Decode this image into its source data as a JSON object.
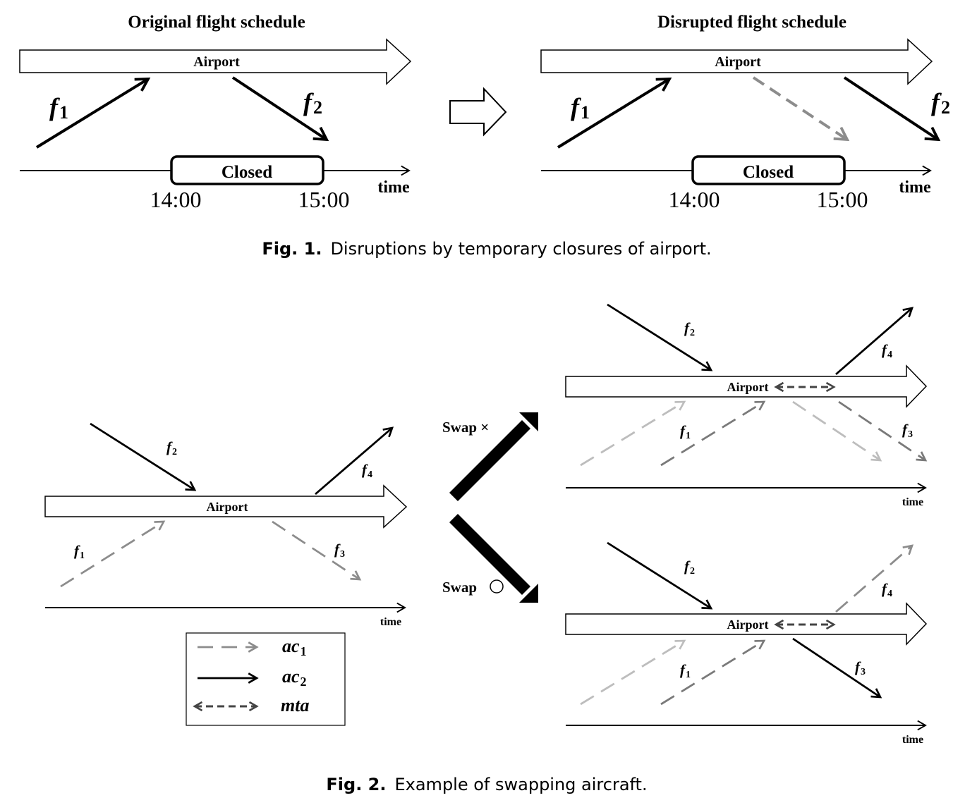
{
  "fig1": {
    "left": {
      "title": "Original flight schedule",
      "airport": "Airport",
      "f1_letter": "f",
      "f1_sub": "1",
      "f2_letter": "f",
      "f2_sub": "2",
      "closed": "Closed",
      "t_start": "14:00",
      "t_end": "15:00",
      "time": "time"
    },
    "right": {
      "title": "Disrupted flight schedule",
      "airport": "Airport",
      "f1_letter": "f",
      "f1_sub": "1",
      "f2_letter": "f",
      "f2_sub": "2",
      "closed": "Closed",
      "t_start": "14:00",
      "t_end": "15:00",
      "time": "time"
    },
    "caption_label": "Fig. 1.",
    "caption_text": "Disruptions by temporary closures of airport."
  },
  "fig2": {
    "left": {
      "airport": "Airport",
      "f1_letter": "f",
      "f1_sub": "1",
      "f2_letter": "f",
      "f2_sub": "2",
      "f3_letter": "f",
      "f3_sub": "3",
      "f4_letter": "f",
      "f4_sub": "4",
      "time": "time"
    },
    "legend": {
      "ac1_letter": "ac",
      "ac1_sub": "1",
      "ac2_letter": "ac",
      "ac2_sub": "2",
      "mta": "mta"
    },
    "swap_x": "Swap ×",
    "swap_o": "Swap",
    "top": {
      "airport": "Airport",
      "f1_letter": "f",
      "f1_sub": "1",
      "f2_letter": "f",
      "f2_sub": "2",
      "f3_letter": "f",
      "f3_sub": "3",
      "f4_letter": "f",
      "f4_sub": "4",
      "time": "time"
    },
    "bottom": {
      "airport": "Airport",
      "f1_letter": "f",
      "f1_sub": "1",
      "f2_letter": "f",
      "f2_sub": "2",
      "f3_letter": "f",
      "f3_sub": "3",
      "f4_letter": "f",
      "f4_sub": "4",
      "time": "time"
    },
    "caption_label": "Fig. 2.",
    "caption_text": "Example of swapping aircraft."
  },
  "colors": {
    "ac1_dark": "#7a7a7a",
    "ac1_light": "#bdbdbd",
    "ac1_mid": "#8c8c8c",
    "mta": "#444444",
    "ink": "#000000"
  }
}
